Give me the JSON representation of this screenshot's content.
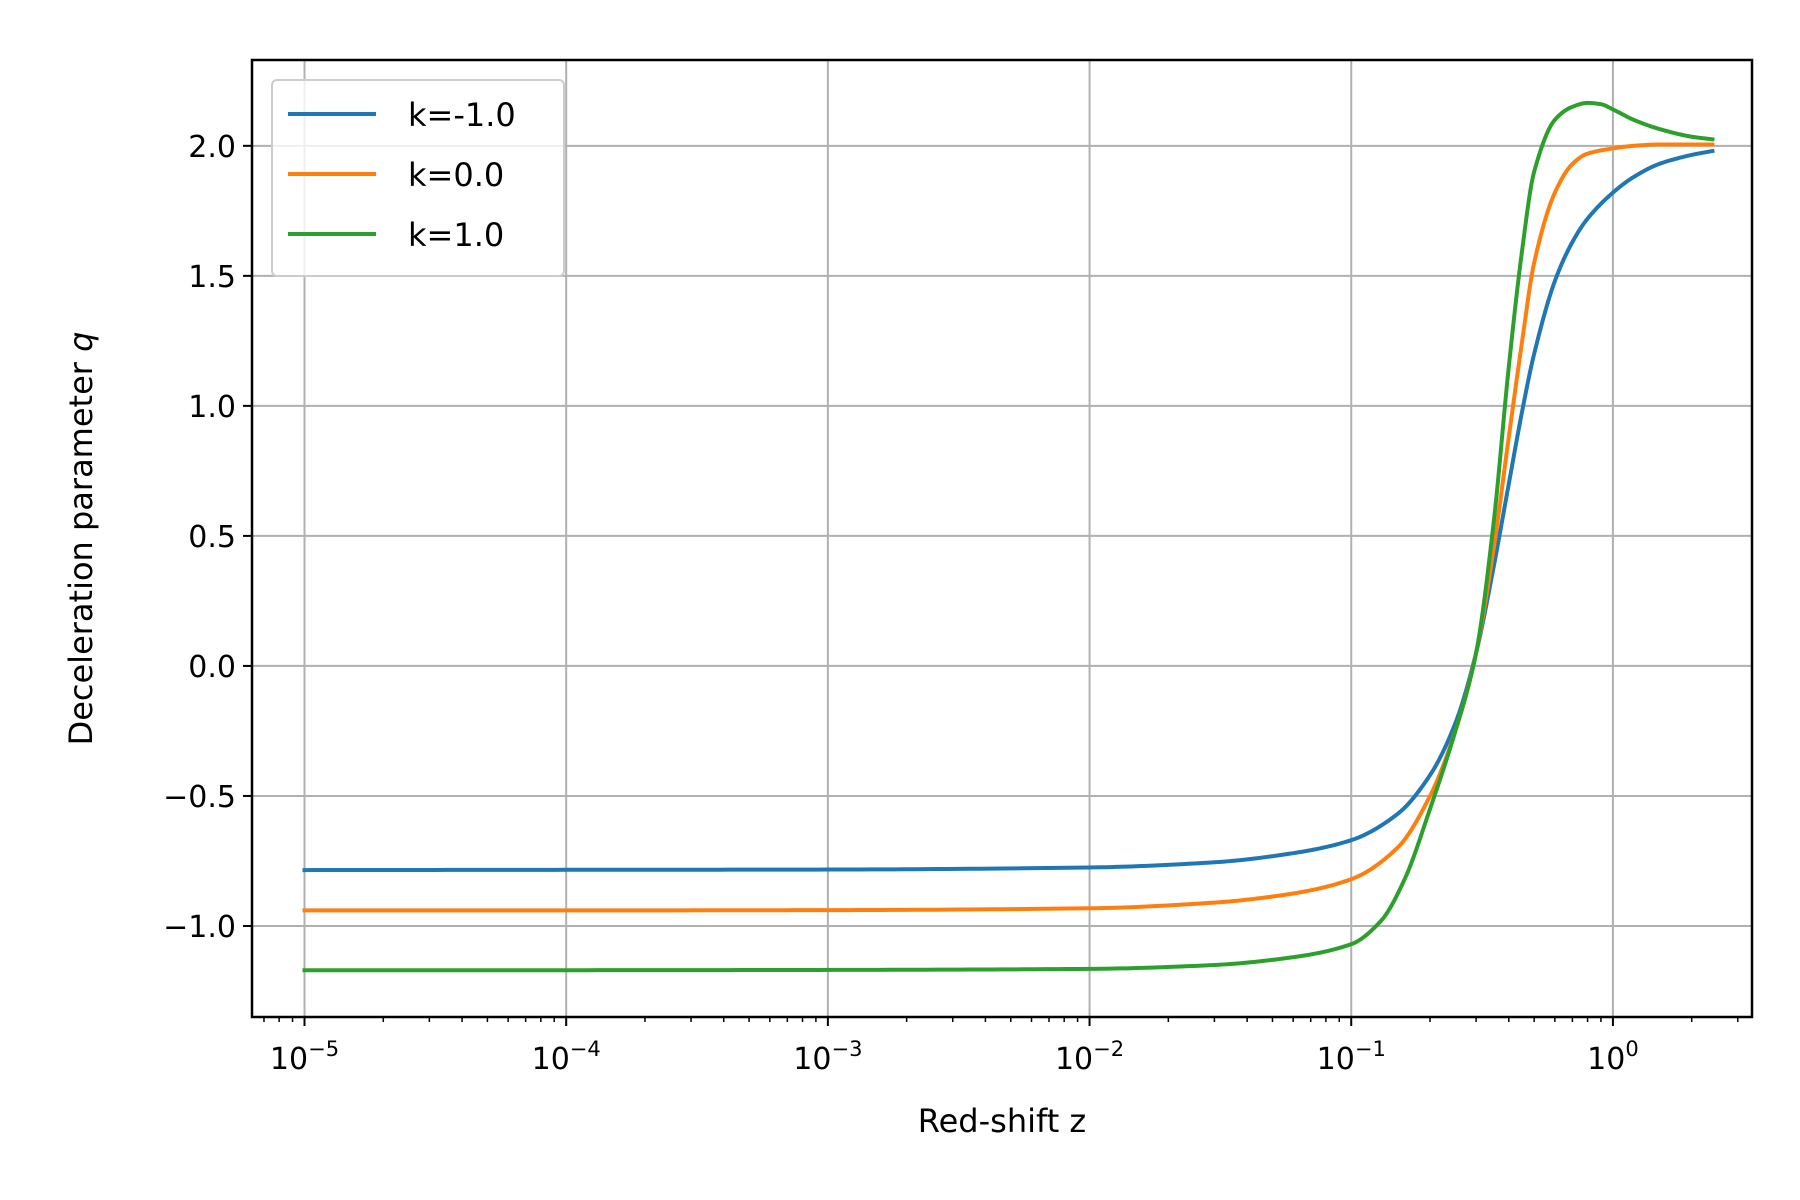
{
  "chart_data": {
    "type": "line",
    "xscale": "log",
    "xlabel": "Red-shift z",
    "ylabel_prefix": "Deceleration parameter ",
    "ylabel_symbol": "q",
    "xlim": [
      6.3e-06,
      3.4
    ],
    "ylim": [
      -1.35,
      2.33
    ],
    "xticks": [
      {
        "value": 1e-05,
        "base": "10",
        "exp": "−5"
      },
      {
        "value": 0.0001,
        "base": "10",
        "exp": "−4"
      },
      {
        "value": 0.001,
        "base": "10",
        "exp": "−3"
      },
      {
        "value": 0.01,
        "base": "10",
        "exp": "−2"
      },
      {
        "value": 0.1,
        "base": "10",
        "exp": "−1"
      },
      {
        "value": 1,
        "base": "10",
        "exp": "0"
      }
    ],
    "yticks": [
      {
        "value": -1.0,
        "label": "−1.0"
      },
      {
        "value": -0.5,
        "label": "−0.5"
      },
      {
        "value": 0.0,
        "label": "0.0"
      },
      {
        "value": 0.5,
        "label": "0.5"
      },
      {
        "value": 1.0,
        "label": "1.0"
      },
      {
        "value": 1.5,
        "label": "1.5"
      },
      {
        "value": 2.0,
        "label": "2.0"
      }
    ],
    "grid": true,
    "legend_position": "top-left",
    "series": [
      {
        "name": "k=-1.0",
        "color": "#1f77b4",
        "x": [
          1e-05,
          0.0001,
          0.001,
          0.01,
          0.03,
          0.06,
          0.1,
          0.15,
          0.2,
          0.25,
          0.3,
          0.35,
          0.4,
          0.45,
          0.5,
          0.6,
          0.7,
          0.8,
          1.0,
          1.2,
          1.5,
          2.0,
          2.4
        ],
        "y": [
          -0.785,
          -0.784,
          -0.783,
          -0.775,
          -0.755,
          -0.72,
          -0.67,
          -0.57,
          -0.42,
          -0.22,
          0.05,
          0.38,
          0.7,
          0.98,
          1.2,
          1.48,
          1.63,
          1.72,
          1.82,
          1.88,
          1.93,
          1.965,
          1.98
        ]
      },
      {
        "name": "k=0.0",
        "color": "#ff7f0e",
        "x": [
          1e-05,
          0.0001,
          0.001,
          0.01,
          0.03,
          0.06,
          0.1,
          0.15,
          0.2,
          0.25,
          0.3,
          0.35,
          0.4,
          0.45,
          0.5,
          0.6,
          0.7,
          0.8,
          1.0,
          1.2,
          1.5,
          2.0,
          2.4
        ],
        "y": [
          -0.94,
          -0.94,
          -0.939,
          -0.932,
          -0.91,
          -0.875,
          -0.82,
          -0.7,
          -0.5,
          -0.25,
          0.05,
          0.45,
          0.88,
          1.25,
          1.55,
          1.82,
          1.93,
          1.97,
          1.99,
          2.0,
          2.005,
          2.005,
          2.005
        ]
      },
      {
        "name": "k=1.0",
        "color": "#2ca02c",
        "x": [
          1e-05,
          0.0001,
          0.001,
          0.01,
          0.03,
          0.06,
          0.1,
          0.13,
          0.16,
          0.2,
          0.25,
          0.3,
          0.35,
          0.4,
          0.45,
          0.5,
          0.6,
          0.7,
          0.8,
          0.9,
          1.0,
          1.2,
          1.5,
          2.0,
          2.4
        ],
        "y": [
          -1.17,
          -1.17,
          -1.169,
          -1.165,
          -1.15,
          -1.12,
          -1.07,
          -0.98,
          -0.82,
          -0.55,
          -0.25,
          0.05,
          0.55,
          1.15,
          1.6,
          1.9,
          2.1,
          2.15,
          2.165,
          2.16,
          2.14,
          2.1,
          2.065,
          2.035,
          2.025
        ]
      }
    ]
  }
}
